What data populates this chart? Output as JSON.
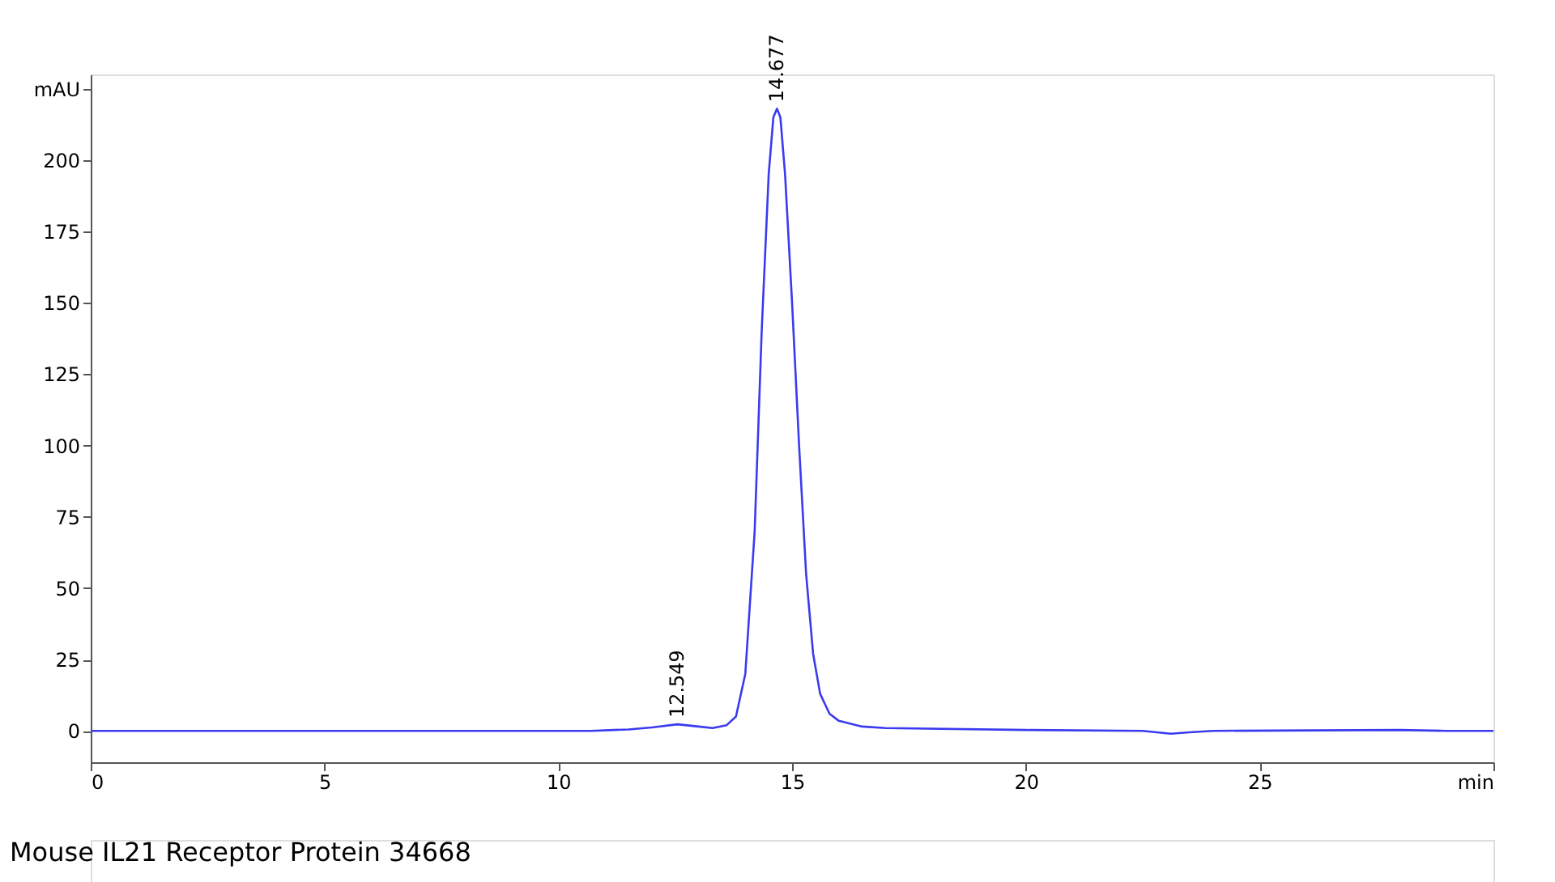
{
  "chart_data": {
    "type": "line",
    "x": [
      0,
      5,
      10.7,
      11.5,
      12.0,
      12.549,
      13.0,
      13.3,
      13.6,
      13.8,
      14.0,
      14.2,
      14.35,
      14.5,
      14.6,
      14.677,
      14.75,
      14.85,
      15.0,
      15.15,
      15.3,
      15.45,
      15.6,
      15.8,
      16.0,
      16.5,
      17,
      20,
      22.5,
      23.1,
      23.5,
      24,
      28,
      29,
      30
    ],
    "series": [
      {
        "color": "#3a3af0",
        "values": [
          0,
          0,
          0,
          0.5,
          1.2,
          2.3,
          1.5,
          1,
          2,
          5,
          20,
          70,
          140,
          195,
          215,
          218,
          215,
          195,
          150,
          100,
          55,
          27,
          13,
          6,
          3.5,
          1.5,
          1,
          0.3,
          0,
          -1,
          -0.5,
          0,
          0.3,
          0,
          0
        ]
      }
    ],
    "xlim": [
      0,
      30
    ],
    "ylim": [
      -11,
      230
    ],
    "xticks": [
      0,
      5,
      10,
      15,
      20,
      25,
      {
        "value": 30,
        "label": "min"
      }
    ],
    "yticks": [
      0,
      25,
      50,
      75,
      100,
      125,
      150,
      175,
      200,
      {
        "value": 225,
        "label": "mAU"
      }
    ],
    "grid": false,
    "marker": "none",
    "line_style": "solid",
    "annotations": [
      {
        "text": "12.549",
        "x": 12.549,
        "y": 2.3
      },
      {
        "text": "14.677",
        "x": 14.677,
        "y": 218
      },
      "Mouse IL21 Receptor Protein 34668"
    ]
  }
}
